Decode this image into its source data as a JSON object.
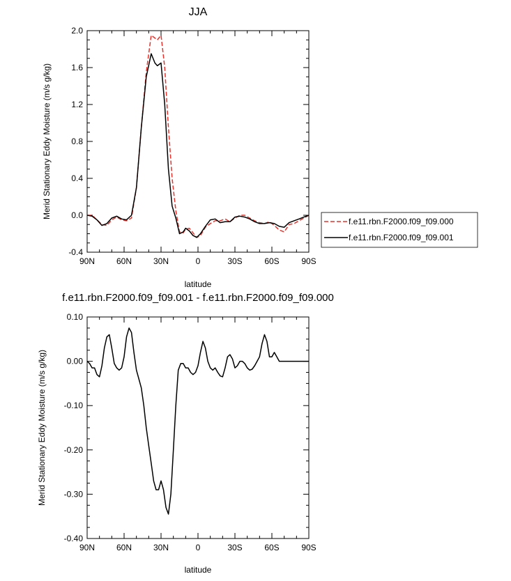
{
  "chart_data": [
    {
      "type": "line",
      "title": "JJA",
      "xlabel": "latitude",
      "ylabel": "Merid Stationary Eddy Moisture (m/s g/kg)",
      "xlim": [
        90,
        -90
      ],
      "ylim": [
        -0.4,
        2.0
      ],
      "x_ticks": [
        {
          "value": 90,
          "label": "90N"
        },
        {
          "value": 60,
          "label": "60N"
        },
        {
          "value": 30,
          "label": "30N"
        },
        {
          "value": 0,
          "label": "0"
        },
        {
          "value": -30,
          "label": "30S"
        },
        {
          "value": -60,
          "label": "60S"
        },
        {
          "value": -90,
          "label": "90S"
        }
      ],
      "y_ticks": [
        {
          "value": 2.0,
          "label": "2.0"
        },
        {
          "value": 1.6,
          "label": "1.6"
        },
        {
          "value": 1.2,
          "label": "1.2"
        },
        {
          "value": 0.8,
          "label": "0.8"
        },
        {
          "value": 0.4,
          "label": "0.4"
        },
        {
          "value": 0.0,
          "label": "0.0"
        },
        {
          "value": -0.4,
          "label": "-0.4"
        }
      ],
      "legend": {
        "placement": "right",
        "entries": [
          "f.e11.rbn.F2000.f09_f09.000",
          "f.e11.rbn.F2000.f09_f09.001"
        ]
      },
      "series": [
        {
          "name": "f.e11.rbn.F2000.f09_f09.000",
          "color": "#e8312a",
          "dash": true,
          "x": [
            90,
            86,
            82,
            78,
            74,
            70,
            66,
            62,
            58,
            54,
            50,
            46,
            42,
            38,
            35,
            33,
            30,
            27,
            24,
            21,
            18,
            15,
            12,
            10,
            7,
            4,
            1,
            -2,
            -6,
            -10,
            -14,
            -18,
            -22,
            -26,
            -30,
            -34,
            -38,
            -42,
            -46,
            -50,
            -54,
            -58,
            -62,
            -66,
            -70,
            -74,
            -78,
            -82,
            -86,
            -90
          ],
          "y": [
            0.0,
            0.0,
            -0.05,
            -0.1,
            -0.11,
            -0.05,
            -0.02,
            -0.05,
            -0.06,
            -0.03,
            0.3,
            0.95,
            1.55,
            1.95,
            1.92,
            1.9,
            1.95,
            1.6,
            0.95,
            0.4,
            0.05,
            -0.18,
            -0.19,
            -0.15,
            -0.14,
            -0.19,
            -0.24,
            -0.22,
            -0.13,
            -0.09,
            -0.06,
            -0.06,
            -0.04,
            -0.07,
            -0.03,
            0.0,
            0.0,
            -0.03,
            -0.06,
            -0.08,
            -0.09,
            -0.07,
            -0.11,
            -0.16,
            -0.18,
            -0.1,
            -0.09,
            -0.06,
            -0.03,
            0.0
          ]
        },
        {
          "name": "f.e11.rbn.F2000.f09_f09.001",
          "color": "#000000",
          "dash": false,
          "x": [
            90,
            86,
            82,
            78,
            74,
            70,
            66,
            62,
            58,
            54,
            50,
            46,
            42,
            38,
            35,
            33,
            30,
            27,
            24,
            21,
            18,
            15,
            12,
            10,
            7,
            4,
            1,
            -2,
            -6,
            -10,
            -14,
            -18,
            -22,
            -26,
            -30,
            -34,
            -38,
            -42,
            -46,
            -50,
            -54,
            -58,
            -62,
            -66,
            -70,
            -74,
            -78,
            -82,
            -86,
            -90
          ],
          "y": [
            0.0,
            -0.01,
            -0.05,
            -0.11,
            -0.09,
            -0.03,
            -0.01,
            -0.04,
            -0.05,
            0.0,
            0.3,
            0.95,
            1.5,
            1.75,
            1.65,
            1.62,
            1.65,
            1.2,
            0.5,
            0.1,
            -0.03,
            -0.2,
            -0.18,
            -0.14,
            -0.17,
            -0.22,
            -0.24,
            -0.2,
            -0.12,
            -0.05,
            -0.04,
            -0.08,
            -0.07,
            -0.07,
            -0.02,
            -0.01,
            -0.02,
            -0.04,
            -0.07,
            -0.09,
            -0.09,
            -0.08,
            -0.09,
            -0.12,
            -0.13,
            -0.08,
            -0.06,
            -0.04,
            -0.02,
            0.0
          ]
        }
      ]
    },
    {
      "type": "line",
      "title": "f.e11.rbn.F2000.f09_f09.001 - f.e11.rbn.F2000.f09_f09.000",
      "xlabel": "latitude",
      "ylabel": "Merid Stationary Eddy Moisture (m/s g/kg)",
      "xlim": [
        90,
        -90
      ],
      "ylim": [
        -0.4,
        0.1
      ],
      "x_ticks": [
        {
          "value": 90,
          "label": "90N"
        },
        {
          "value": 60,
          "label": "60N"
        },
        {
          "value": 30,
          "label": "30N"
        },
        {
          "value": 0,
          "label": "0"
        },
        {
          "value": -30,
          "label": "30S"
        },
        {
          "value": -60,
          "label": "60S"
        },
        {
          "value": -90,
          "label": "90S"
        }
      ],
      "y_ticks": [
        {
          "value": 0.1,
          "label": "0.10"
        },
        {
          "value": 0.0,
          "label": "0.00"
        },
        {
          "value": -0.1,
          "label": "-0.10"
        },
        {
          "value": -0.2,
          "label": "-0.20"
        },
        {
          "value": -0.3,
          "label": "-0.30"
        },
        {
          "value": -0.4,
          "label": "-0.40"
        }
      ],
      "series": [
        {
          "color": "#000000",
          "dash": false,
          "x": [
            90,
            88,
            86,
            84,
            82,
            80,
            78,
            76,
            74,
            72,
            70,
            68,
            66,
            64,
            62,
            60,
            58,
            56,
            54,
            52,
            50,
            48,
            46,
            44,
            42,
            40,
            38,
            36,
            34,
            32,
            30,
            29,
            28,
            26,
            24,
            22,
            20,
            18,
            16,
            14,
            12,
            10,
            8,
            6,
            4,
            2,
            0,
            -2,
            -4,
            -6,
            -8,
            -10,
            -12,
            -14,
            -16,
            -18,
            -20,
            -22,
            -24,
            -26,
            -28,
            -30,
            -32,
            -34,
            -36,
            -38,
            -40,
            -42,
            -44,
            -46,
            -48,
            -50,
            -52,
            -54,
            -56,
            -58,
            -60,
            -62,
            -64,
            -66,
            -68,
            -70,
            -72,
            -74,
            -76,
            -78,
            -80,
            -82,
            -84,
            -86,
            -88,
            -90
          ],
          "y": [
            0.0,
            -0.005,
            -0.015,
            -0.015,
            -0.03,
            -0.035,
            -0.01,
            0.03,
            0.055,
            0.06,
            0.03,
            -0.005,
            -0.015,
            -0.02,
            -0.015,
            0.01,
            0.055,
            0.075,
            0.065,
            0.02,
            -0.02,
            -0.04,
            -0.06,
            -0.1,
            -0.15,
            -0.19,
            -0.23,
            -0.27,
            -0.29,
            -0.29,
            -0.27,
            -0.28,
            -0.29,
            -0.33,
            -0.345,
            -0.3,
            -0.2,
            -0.1,
            -0.02,
            -0.005,
            -0.005,
            -0.015,
            -0.015,
            -0.025,
            -0.03,
            -0.025,
            -0.01,
            0.02,
            0.045,
            0.03,
            0.0,
            -0.015,
            -0.02,
            -0.015,
            -0.025,
            -0.033,
            -0.035,
            -0.015,
            0.01,
            0.015,
            0.005,
            -0.015,
            -0.01,
            0.0,
            0.0,
            -0.005,
            -0.015,
            -0.02,
            -0.018,
            -0.01,
            0.0,
            0.01,
            0.04,
            0.06,
            0.045,
            0.01,
            0.01,
            0.02,
            0.01,
            0.0,
            0.0,
            0.0,
            0.0,
            0.0,
            0.0,
            0.0,
            0.0,
            0.0,
            0.0,
            0.0,
            0.0,
            0.0
          ]
        }
      ]
    }
  ]
}
